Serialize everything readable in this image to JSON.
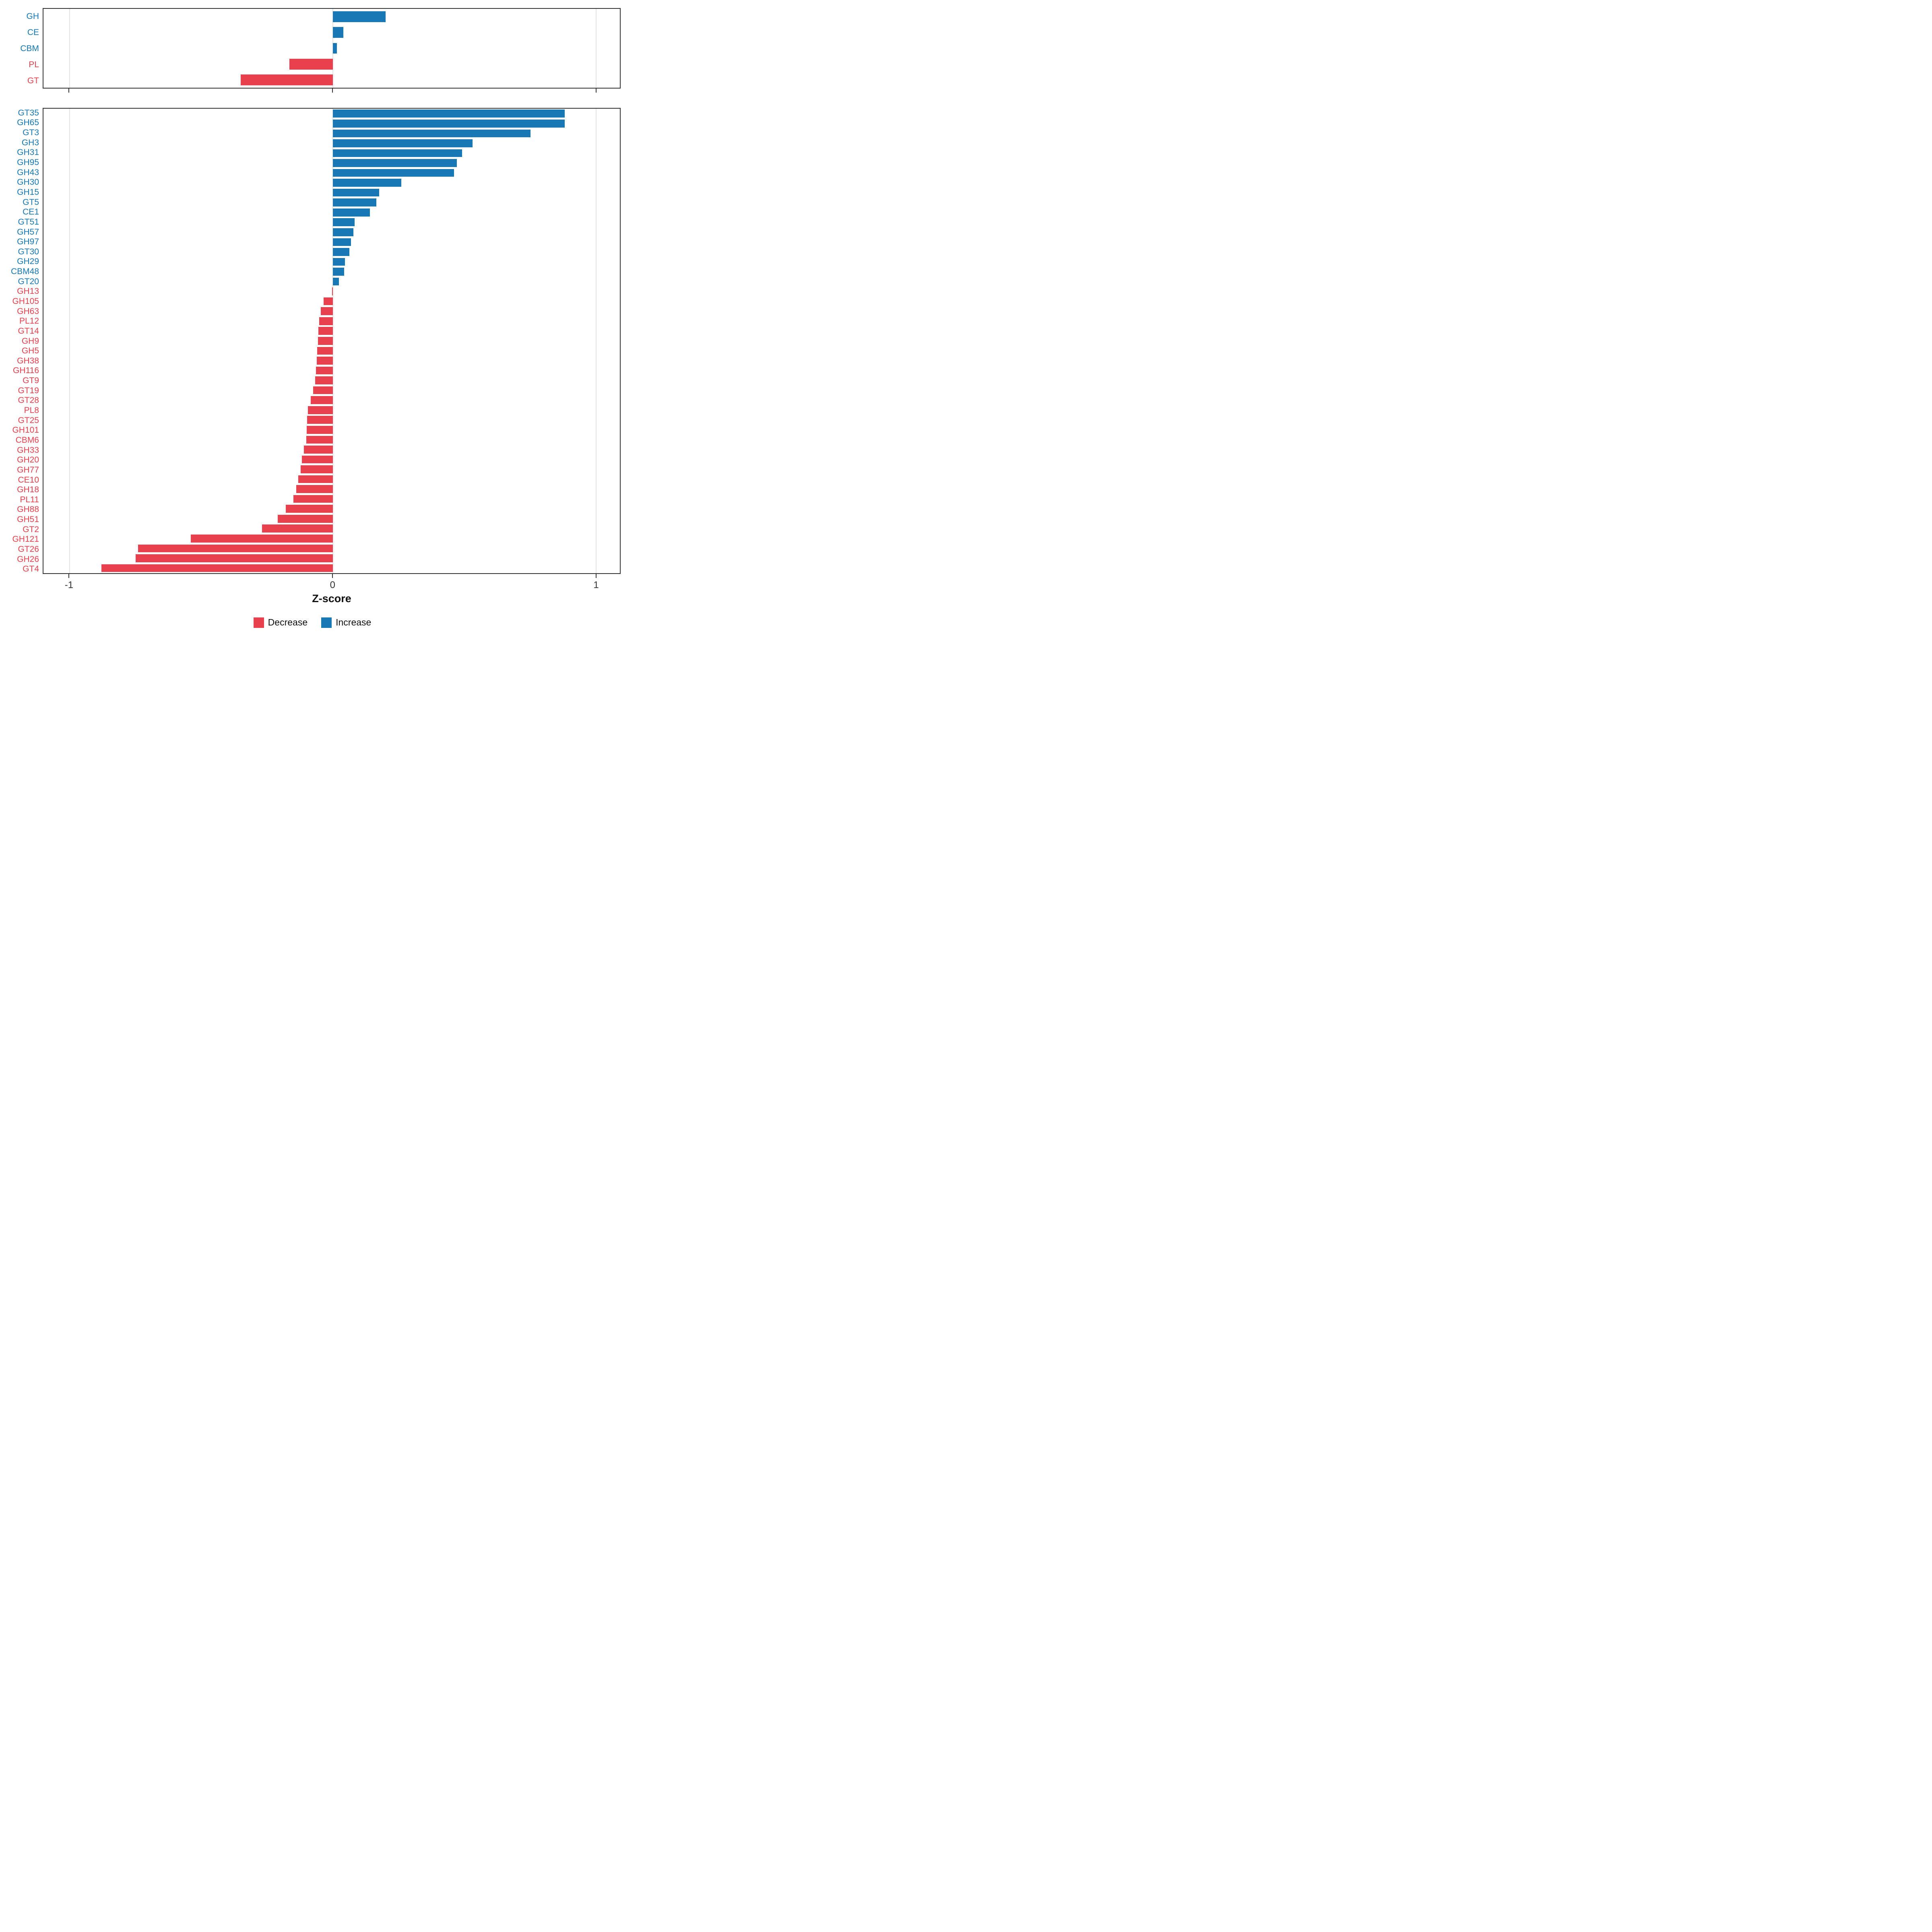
{
  "chart_meta": {
    "xlabel": "Z-score",
    "xlim": [
      -1.1,
      1.09
    ],
    "xticks": [
      -1,
      0,
      1
    ],
    "xtick_labels": [
      "-1",
      "0",
      "1"
    ],
    "grid_color": "#e4e4e4",
    "colors": {
      "increase": "#1778B5",
      "decrease": "#E8414D"
    }
  },
  "legend": {
    "items": [
      {
        "label": "Decrease",
        "color": "#E8414D"
      },
      {
        "label": "Increase",
        "color": "#1778B5"
      }
    ]
  },
  "chart_data": [
    {
      "type": "bar",
      "orientation": "horizontal",
      "panel": "cazyme-class-summary",
      "title": "",
      "xlabel": "Z-score",
      "xlim": [
        -1.1,
        1.09
      ],
      "grid": true,
      "legend_position": "bottom",
      "categories": [
        "GH",
        "CE",
        "CBM",
        "PL",
        "GT"
      ],
      "values": [
        0.2,
        0.04,
        0.015,
        -0.165,
        -0.35
      ]
    },
    {
      "type": "bar",
      "orientation": "horizontal",
      "panel": "cazyme-family-detail",
      "title": "",
      "xlabel": "Z-score",
      "xlim": [
        -1.1,
        1.09
      ],
      "grid": true,
      "legend_position": "bottom",
      "categories": [
        "GT35",
        "GH65",
        "GT3",
        "GH3",
        "GH31",
        "GH95",
        "GH43",
        "GH30",
        "GH15",
        "GT5",
        "CE1",
        "GT51",
        "GH57",
        "GH97",
        "GT30",
        "GH29",
        "CBM48",
        "GT20",
        "GH13",
        "GH105",
        "GH63",
        "PL12",
        "GT14",
        "GH9",
        "GH5",
        "GH38",
        "GH116",
        "GT9",
        "GT19",
        "GT28",
        "PL8",
        "GT25",
        "GH101",
        "CBM6",
        "GH33",
        "GH20",
        "GH77",
        "CE10",
        "GH18",
        "PL11",
        "GH88",
        "GH51",
        "GT2",
        "GH121",
        "GT26",
        "GH26",
        "GT4"
      ],
      "values": [
        0.88,
        0.88,
        0.75,
        0.53,
        0.49,
        0.47,
        0.46,
        0.26,
        0.175,
        0.165,
        0.14,
        0.082,
        0.078,
        0.068,
        0.062,
        0.046,
        0.042,
        0.022,
        -0.003,
        -0.035,
        -0.046,
        -0.052,
        -0.055,
        -0.057,
        -0.06,
        -0.062,
        -0.065,
        -0.068,
        -0.075,
        -0.085,
        -0.095,
        -0.098,
        -0.1,
        -0.102,
        -0.11,
        -0.118,
        -0.122,
        -0.132,
        -0.14,
        -0.15,
        -0.18,
        -0.21,
        -0.27,
        -0.54,
        -0.74,
        -0.75,
        -0.88
      ]
    }
  ]
}
